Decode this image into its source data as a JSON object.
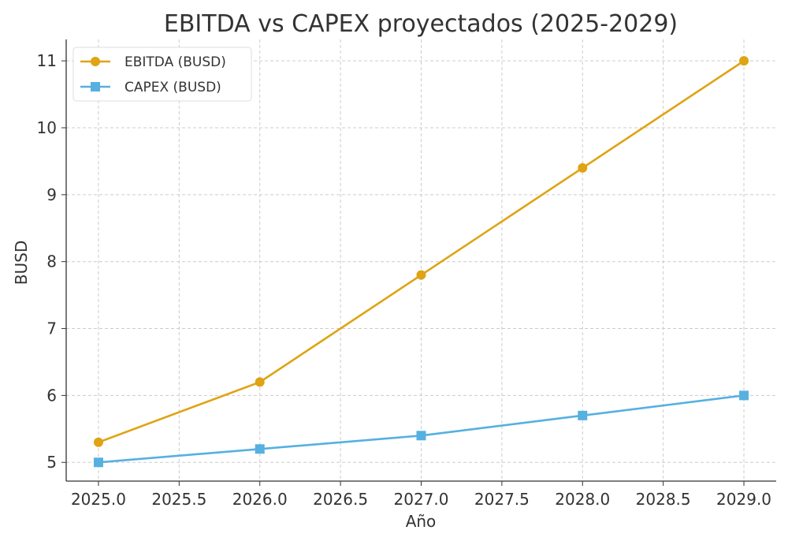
{
  "chart_data": {
    "type": "line",
    "title": "EBITDA vs CAPEX proyectados (2025-2029)",
    "xlabel": "Año",
    "ylabel": "BUSD",
    "x": [
      2025,
      2026,
      2027,
      2028,
      2029
    ],
    "xlim": [
      2024.8,
      2029.2
    ],
    "ylim": [
      4.72,
      11.32
    ],
    "xticks": [
      "2025.0",
      "2025.5",
      "2026.0",
      "2026.5",
      "2027.0",
      "2027.5",
      "2028.0",
      "2028.5",
      "2029.0"
    ],
    "yticks": [
      "5",
      "6",
      "7",
      "8",
      "9",
      "10",
      "11"
    ],
    "grid": true,
    "legend": "top-left",
    "series": [
      {
        "name": "EBITDA (BUSD)",
        "values": [
          5.3,
          6.2,
          7.8,
          9.4,
          11.0
        ],
        "color": "#DFA313",
        "marker": "circle"
      },
      {
        "name": "CAPEX (BUSD)",
        "values": [
          5.0,
          5.2,
          5.4,
          5.7,
          6.0
        ],
        "color": "#56B0E0",
        "marker": "square"
      }
    ]
  }
}
